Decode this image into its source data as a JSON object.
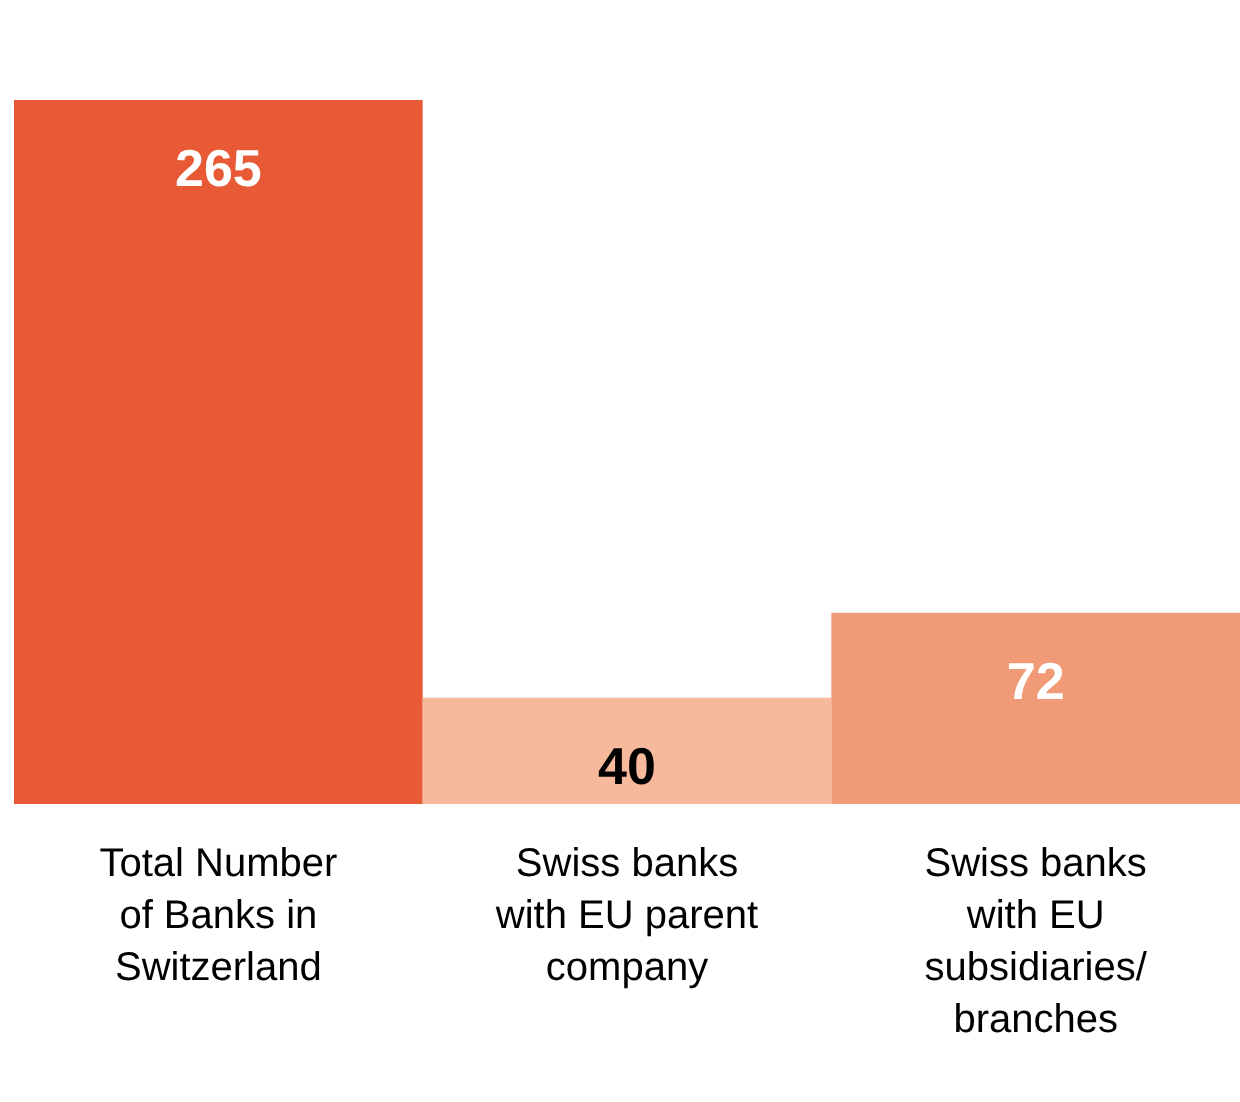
{
  "chart_data": {
    "type": "bar",
    "categories": [
      "Total Number of Banks in Switzerland",
      "Swiss banks with EU parent company",
      "Swiss banks with EU subsidiaries/ branches"
    ],
    "values": [
      265,
      40,
      72
    ],
    "colors": [
      "#e85a36",
      "#f7b99c",
      "#f09a78"
    ],
    "data_labels": true
  }
}
